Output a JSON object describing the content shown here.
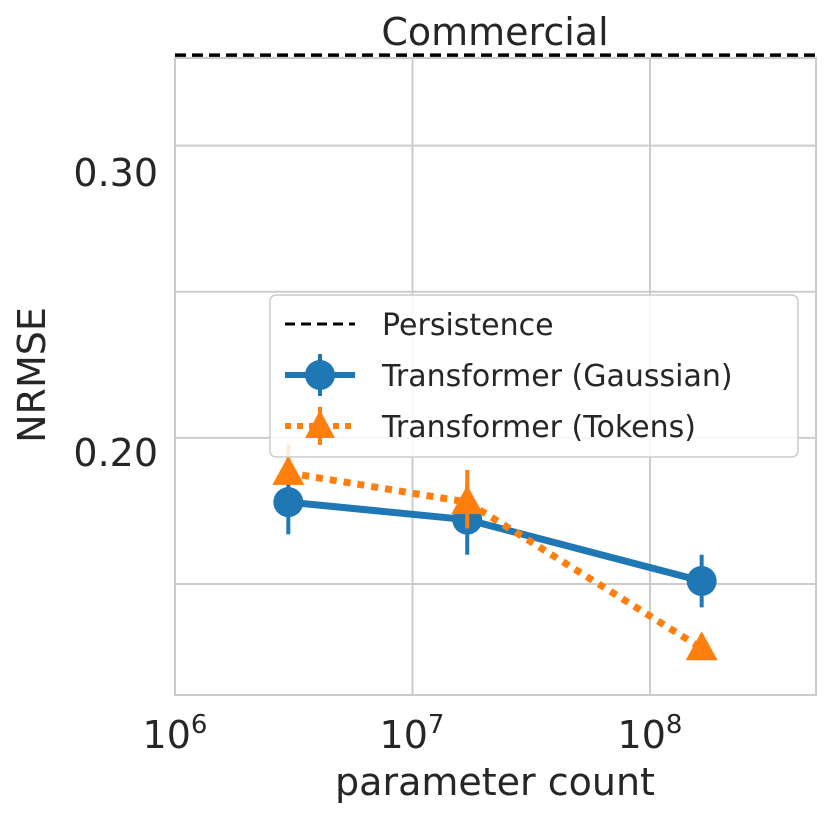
{
  "chart_data": {
    "type": "line",
    "title": "Commercial",
    "xlabel": "parameter count",
    "ylabel": "NRMSE",
    "xscale": "log",
    "xlim": [
      1000000,
      500000000
    ],
    "ylim": [
      0.112,
      0.33
    ],
    "x_ticks": [
      {
        "value": 1000000,
        "base": "10",
        "exp": "6"
      },
      {
        "value": 10000000,
        "base": "10",
        "exp": "7"
      },
      {
        "value": 100000000,
        "base": "10",
        "exp": "8"
      }
    ],
    "y_ticks": [
      {
        "value": 0.3,
        "label": "0.30"
      },
      {
        "value": 0.2,
        "label": "0.20"
      }
    ],
    "y_minor_grid": [
      0.15,
      0.25
    ],
    "grid": true,
    "legend_position": "center-right",
    "baseline": {
      "name": "Persistence",
      "value": 0.331,
      "color": "#000000",
      "style": "dashed"
    },
    "series": [
      {
        "name": "Transformer (Gaussian)",
        "color": "#1f77b4",
        "marker": "circle",
        "style": "solid",
        "x": [
          3000000,
          17000000,
          165000000
        ],
        "y": [
          0.178,
          0.172,
          0.151
        ],
        "err_low": [
          0.167,
          0.16,
          0.142
        ],
        "err_high": [
          0.189,
          0.184,
          0.16
        ]
      },
      {
        "name": "Transformer (Tokens)",
        "color": "#ff7f0e",
        "marker": "triangle",
        "style": "dotted",
        "x": [
          3000000,
          17000000,
          165000000
        ],
        "y": [
          0.188,
          0.178,
          0.128
        ],
        "err_low": [
          0.184,
          0.169,
          0.125
        ],
        "err_high": [
          0.198,
          0.189,
          0.132
        ]
      }
    ]
  }
}
